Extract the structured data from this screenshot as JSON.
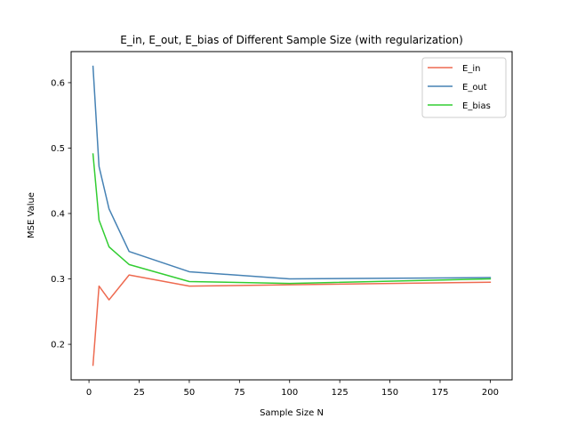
{
  "chart_data": {
    "type": "line",
    "title": "E_in, E_out, E_bias of Different Sample Size (with regularization)",
    "xlabel": "Sample Size N",
    "ylabel": "MSE Value",
    "xlim": [
      -8.9,
      210.9
    ],
    "ylim": [
      0.1457,
      0.6475
    ],
    "xticks": [
      0,
      25,
      50,
      75,
      100,
      125,
      150,
      175,
      200
    ],
    "yticks": [
      0.2,
      0.3,
      0.4,
      0.5,
      0.6
    ],
    "ytick_labels": [
      "0.2",
      "0.3",
      "0.4",
      "0.5",
      "0.6"
    ],
    "grid": false,
    "legend_position": "top-right",
    "x": [
      2,
      5,
      10,
      20,
      50,
      100,
      200
    ],
    "series": [
      {
        "name": "E_in",
        "color": "#ee6a50",
        "values": [
          0.168,
          0.289,
          0.268,
          0.306,
          0.289,
          0.291,
          0.295
        ]
      },
      {
        "name": "E_out",
        "color": "#4682b4",
        "values": [
          0.625,
          0.472,
          0.407,
          0.342,
          0.311,
          0.3,
          0.302
        ]
      },
      {
        "name": "E_bias",
        "color": "#32cd32",
        "values": [
          0.491,
          0.39,
          0.349,
          0.322,
          0.296,
          0.293,
          0.3
        ]
      }
    ]
  }
}
